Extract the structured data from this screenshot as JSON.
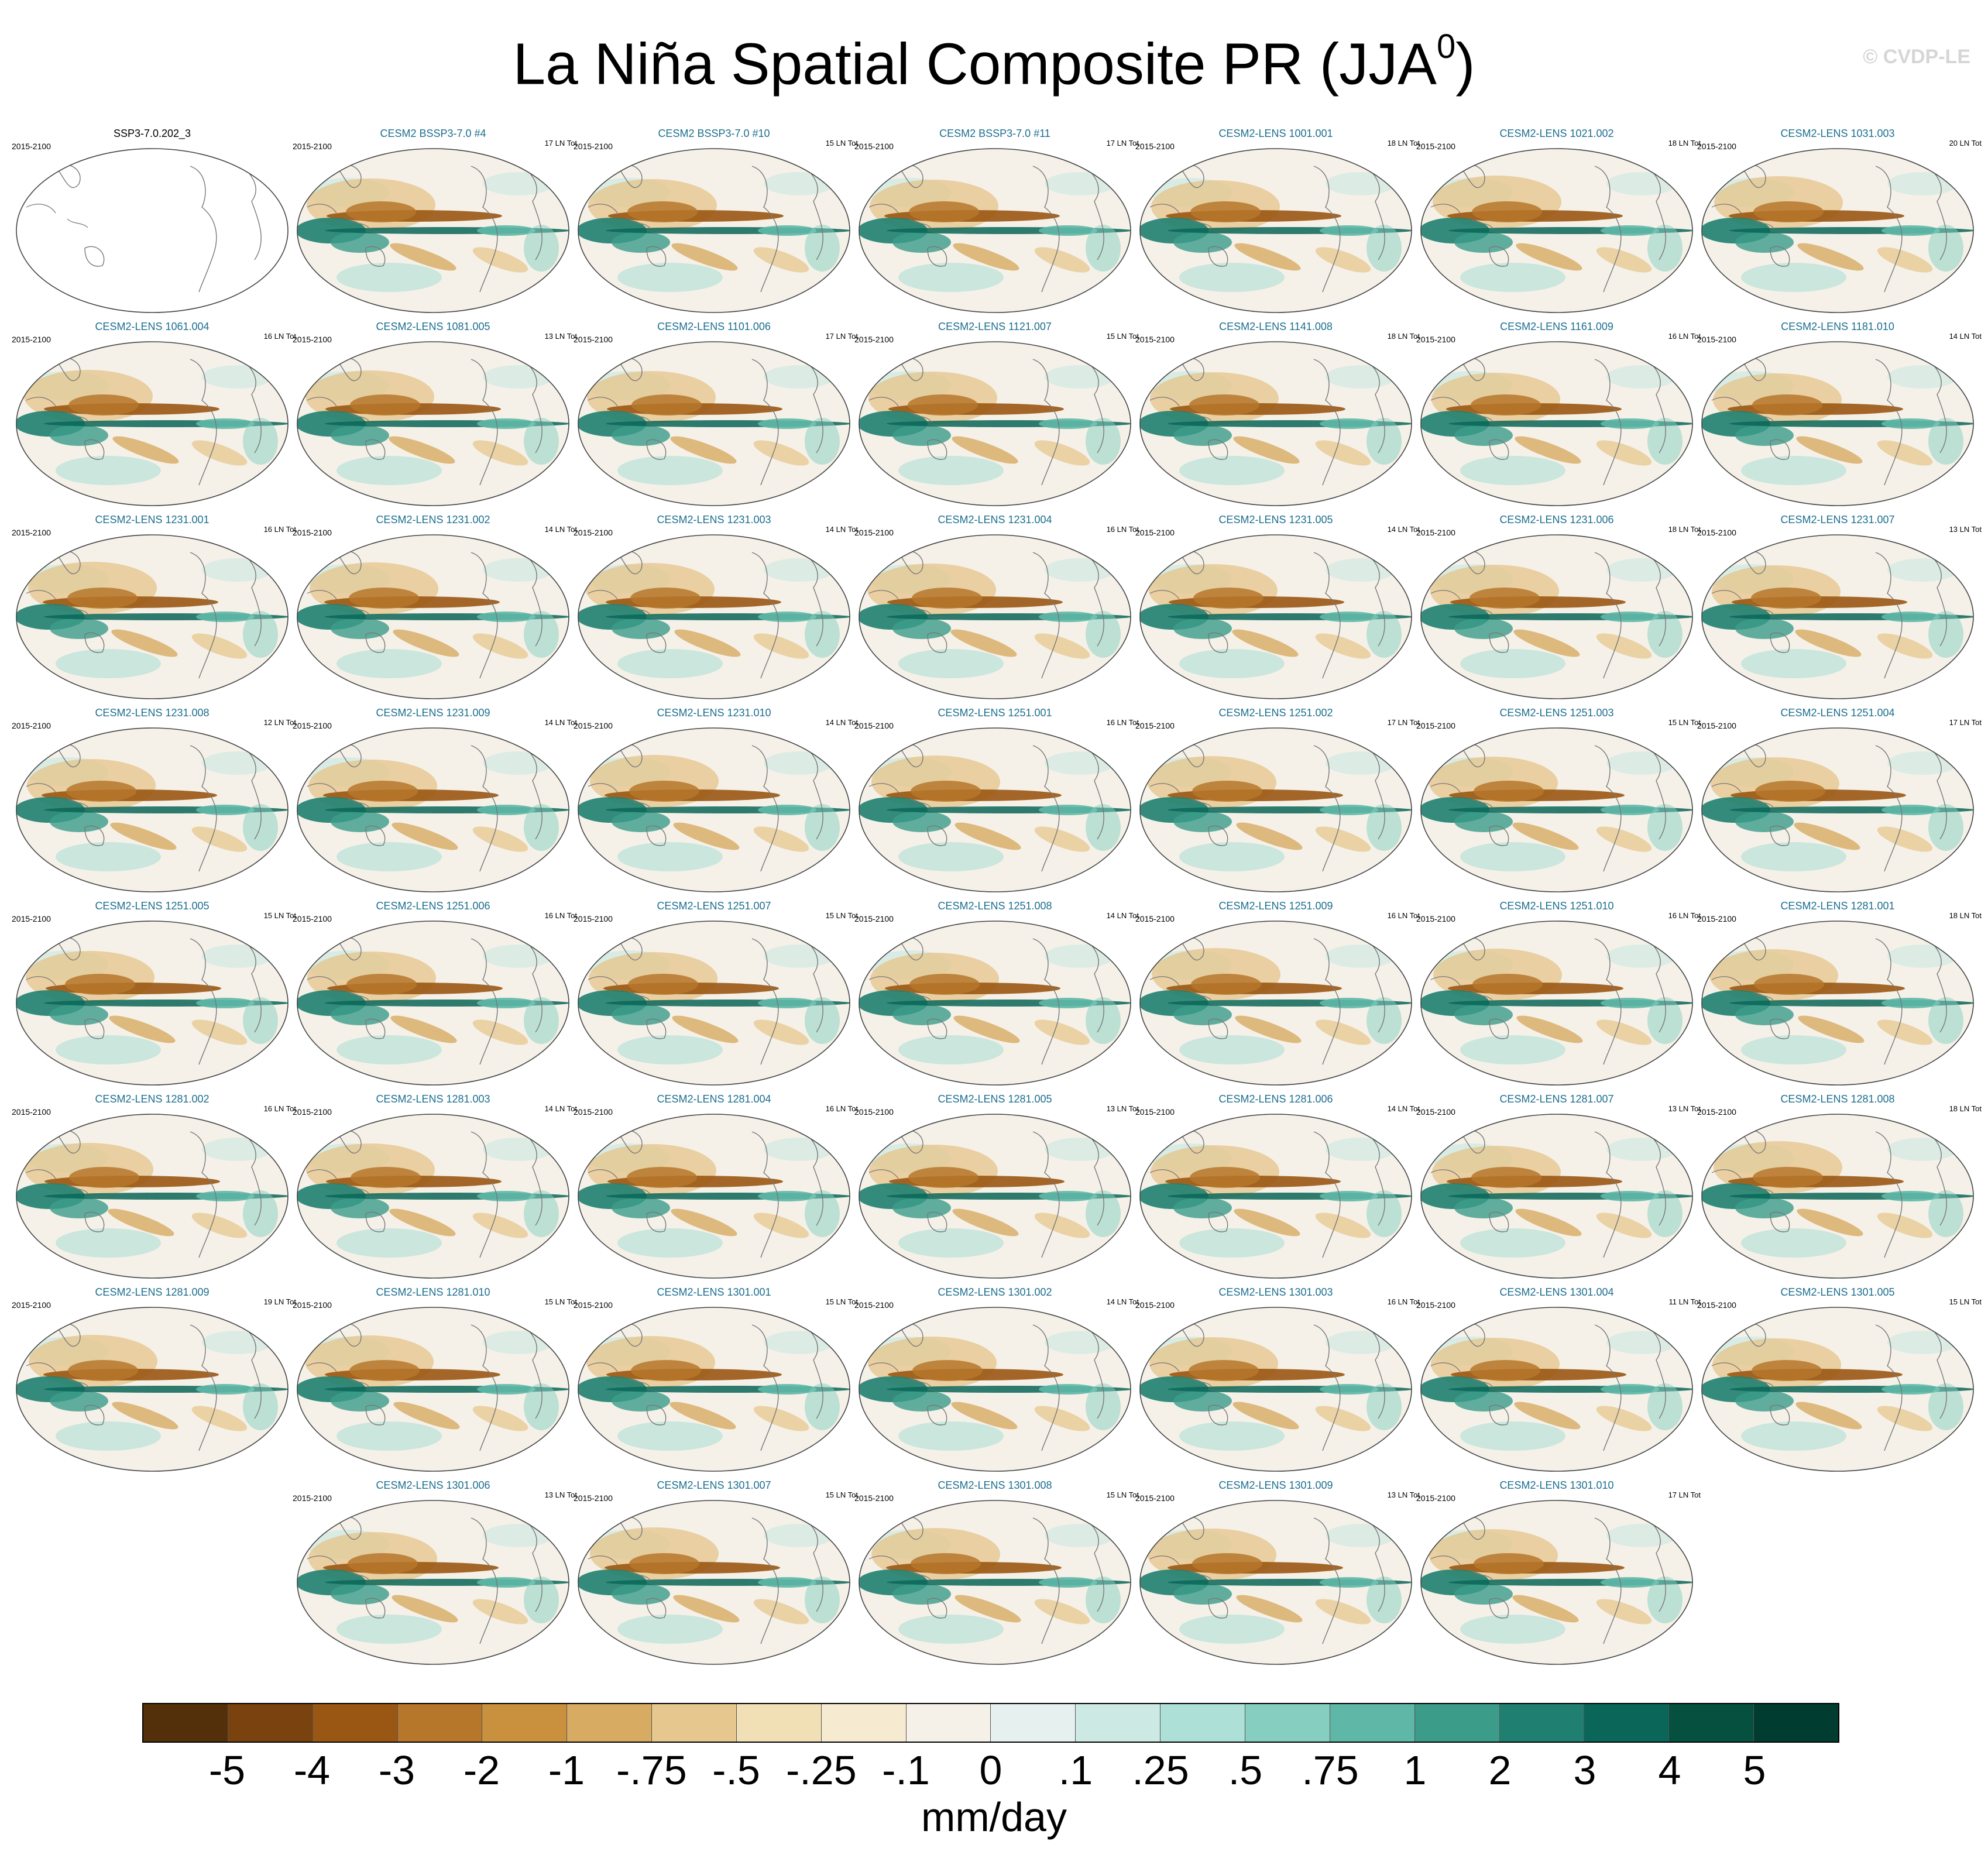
{
  "title": {
    "main": "La Niña Spatial Composite PR (JJA",
    "superscript": "0",
    "suffix": ")"
  },
  "credit": "© CVDP-LE",
  "observation_panel": {
    "title": "SSP3-7.0.202_3",
    "years": "2015-2100"
  },
  "ensemble_panels": [
    {
      "title": "CESM2 BSSP3-7.0 #4",
      "years": "2015-2100",
      "ln_tot": "17 LN Tot"
    },
    {
      "title": "CESM2 BSSP3-7.0 #10",
      "years": "2015-2100",
      "ln_tot": "15 LN Tot"
    },
    {
      "title": "CESM2 BSSP3-7.0 #11",
      "years": "2015-2100",
      "ln_tot": "17 LN Tot"
    },
    {
      "title": "CESM2-LENS 1001.001",
      "years": "2015-2100",
      "ln_tot": "18 LN Tot"
    },
    {
      "title": "CESM2-LENS 1021.002",
      "years": "2015-2100",
      "ln_tot": "18 LN Tot"
    },
    {
      "title": "CESM2-LENS 1031.003",
      "years": "2015-2100",
      "ln_tot": "20 LN Tot"
    },
    {
      "title": "CESM2-LENS 1061.004",
      "years": "2015-2100",
      "ln_tot": "16 LN Tot"
    },
    {
      "title": "CESM2-LENS 1081.005",
      "years": "2015-2100",
      "ln_tot": "13 LN Tot"
    },
    {
      "title": "CESM2-LENS 1101.006",
      "years": "2015-2100",
      "ln_tot": "17 LN Tot"
    },
    {
      "title": "CESM2-LENS 1121.007",
      "years": "2015-2100",
      "ln_tot": "15 LN Tot"
    },
    {
      "title": "CESM2-LENS 1141.008",
      "years": "2015-2100",
      "ln_tot": "18 LN Tot"
    },
    {
      "title": "CESM2-LENS 1161.009",
      "years": "2015-2100",
      "ln_tot": "16 LN Tot"
    },
    {
      "title": "CESM2-LENS 1181.010",
      "years": "2015-2100",
      "ln_tot": "14 LN Tot"
    },
    {
      "title": "CESM2-LENS 1231.001",
      "years": "2015-2100",
      "ln_tot": "16 LN Tot"
    },
    {
      "title": "CESM2-LENS 1231.002",
      "years": "2015-2100",
      "ln_tot": "14 LN Tot"
    },
    {
      "title": "CESM2-LENS 1231.003",
      "years": "2015-2100",
      "ln_tot": "14 LN Tot"
    },
    {
      "title": "CESM2-LENS 1231.004",
      "years": "2015-2100",
      "ln_tot": "16 LN Tot"
    },
    {
      "title": "CESM2-LENS 1231.005",
      "years": "2015-2100",
      "ln_tot": "14 LN Tot"
    },
    {
      "title": "CESM2-LENS 1231.006",
      "years": "2015-2100",
      "ln_tot": "18 LN Tot"
    },
    {
      "title": "CESM2-LENS 1231.007",
      "years": "2015-2100",
      "ln_tot": "13 LN Tot"
    },
    {
      "title": "CESM2-LENS 1231.008",
      "years": "2015-2100",
      "ln_tot": "12 LN Tot"
    },
    {
      "title": "CESM2-LENS 1231.009",
      "years": "2015-2100",
      "ln_tot": "14 LN Tot"
    },
    {
      "title": "CESM2-LENS 1231.010",
      "years": "2015-2100",
      "ln_tot": "14 LN Tot"
    },
    {
      "title": "CESM2-LENS 1251.001",
      "years": "2015-2100",
      "ln_tot": "16 LN Tot"
    },
    {
      "title": "CESM2-LENS 1251.002",
      "years": "2015-2100",
      "ln_tot": "17 LN Tot"
    },
    {
      "title": "CESM2-LENS 1251.003",
      "years": "2015-2100",
      "ln_tot": "15 LN Tot"
    },
    {
      "title": "CESM2-LENS 1251.004",
      "years": "2015-2100",
      "ln_tot": "17 LN Tot"
    },
    {
      "title": "CESM2-LENS 1251.005",
      "years": "2015-2100",
      "ln_tot": "15 LN Tot"
    },
    {
      "title": "CESM2-LENS 1251.006",
      "years": "2015-2100",
      "ln_tot": "16 LN Tot"
    },
    {
      "title": "CESM2-LENS 1251.007",
      "years": "2015-2100",
      "ln_tot": "15 LN Tot"
    },
    {
      "title": "CESM2-LENS 1251.008",
      "years": "2015-2100",
      "ln_tot": "14 LN Tot"
    },
    {
      "title": "CESM2-LENS 1251.009",
      "years": "2015-2100",
      "ln_tot": "16 LN Tot"
    },
    {
      "title": "CESM2-LENS 1251.010",
      "years": "2015-2100",
      "ln_tot": "16 LN Tot"
    },
    {
      "title": "CESM2-LENS 1281.001",
      "years": "2015-2100",
      "ln_tot": "18 LN Tot"
    },
    {
      "title": "CESM2-LENS 1281.002",
      "years": "2015-2100",
      "ln_tot": "16 LN Tot"
    },
    {
      "title": "CESM2-LENS 1281.003",
      "years": "2015-2100",
      "ln_tot": "14 LN Tot"
    },
    {
      "title": "CESM2-LENS 1281.004",
      "years": "2015-2100",
      "ln_tot": "16 LN Tot"
    },
    {
      "title": "CESM2-LENS 1281.005",
      "years": "2015-2100",
      "ln_tot": "13 LN Tot"
    },
    {
      "title": "CESM2-LENS 1281.006",
      "years": "2015-2100",
      "ln_tot": "14 LN Tot"
    },
    {
      "title": "CESM2-LENS 1281.007",
      "years": "2015-2100",
      "ln_tot": "13 LN Tot"
    },
    {
      "title": "CESM2-LENS 1281.008",
      "years": "2015-2100",
      "ln_tot": "18 LN Tot"
    },
    {
      "title": "CESM2-LENS 1281.009",
      "years": "2015-2100",
      "ln_tot": "19 LN Tot"
    },
    {
      "title": "CESM2-LENS 1281.010",
      "years": "2015-2100",
      "ln_tot": "15 LN Tot"
    },
    {
      "title": "CESM2-LENS 1301.001",
      "years": "2015-2100",
      "ln_tot": "15 LN Tot"
    },
    {
      "title": "CESM2-LENS 1301.002",
      "years": "2015-2100",
      "ln_tot": "14 LN Tot"
    },
    {
      "title": "CESM2-LENS 1301.003",
      "years": "2015-2100",
      "ln_tot": "16 LN Tot"
    },
    {
      "title": "CESM2-LENS 1301.004",
      "years": "2015-2100",
      "ln_tot": "11 LN Tot"
    },
    {
      "title": "CESM2-LENS 1301.005",
      "years": "2015-2100",
      "ln_tot": "15 LN Tot"
    },
    {
      "title": "CESM2-LENS 1301.006",
      "years": "2015-2100",
      "ln_tot": "13 LN Tot"
    },
    {
      "title": "CESM2-LENS 1301.007",
      "years": "2015-2100",
      "ln_tot": "15 LN Tot"
    },
    {
      "title": "CESM2-LENS 1301.008",
      "years": "2015-2100",
      "ln_tot": "15 LN Tot"
    },
    {
      "title": "CESM2-LENS 1301.009",
      "years": "2015-2100",
      "ln_tot": "13 LN Tot"
    },
    {
      "title": "CESM2-LENS 1301.010",
      "years": "2015-2100",
      "ln_tot": "17 LN Tot"
    }
  ],
  "colorbar": {
    "colors": [
      "#54300a",
      "#7a420f",
      "#9a5713",
      "#b6772b",
      "#c9913e",
      "#d7ab62",
      "#e6c78e",
      "#f1dfb5",
      "#f6ebd0",
      "#f5f1e9",
      "#e6f0ee",
      "#cce9e3",
      "#ade0d6",
      "#86cfc0",
      "#5fb8a7",
      "#3c9c8a",
      "#1f7f70",
      "#0a6658",
      "#05503f",
      "#003d30"
    ],
    "labels": [
      "-5",
      "-4",
      "-3",
      "-2",
      "-1",
      "-.75",
      "-.5",
      "-.25",
      "-.1",
      "0",
      ".1",
      ".25",
      ".5",
      ".75",
      "1",
      "2",
      "3",
      "4",
      "5"
    ],
    "units": "mm/day"
  }
}
